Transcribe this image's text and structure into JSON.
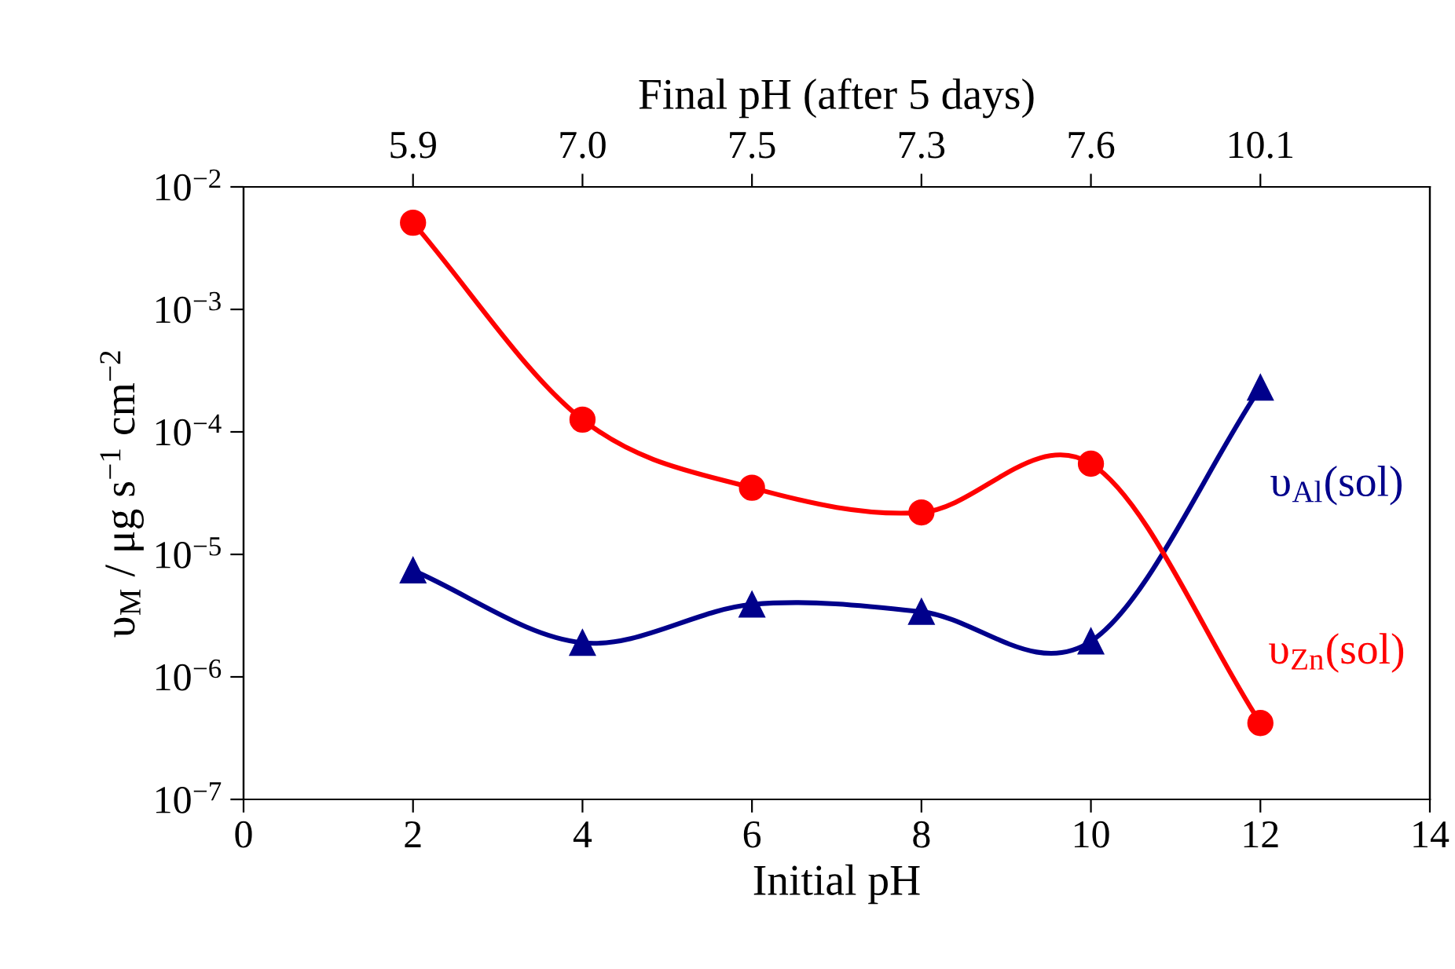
{
  "chart_data": {
    "type": "line",
    "xlabel": "Initial pH",
    "ylabel": "υ$_{M}$ / μg s$^{−1}$ cm$^{−2}$",
    "x2label": "Final pH (after 5 days)",
    "x": [
      2,
      4,
      6,
      8,
      10,
      12
    ],
    "series": [
      {
        "name": "υ$_{Al}$(sol)",
        "color": "#00008b",
        "marker": "triangle",
        "values": [
          7.4e-06,
          1.9e-06,
          3.9e-06,
          3.4e-06,
          1.95e-06,
          0.00023
        ]
      },
      {
        "name": "υ$_{Zn}$(sol)",
        "color": "#ff0000",
        "marker": "circle",
        "values": [
          0.0051,
          0.000126,
          3.5e-05,
          2.2e-05,
          5.5e-05,
          4.2e-07
        ]
      }
    ],
    "log": "y",
    "xlim": [
      0,
      14
    ],
    "xticks": [
      0,
      2,
      4,
      6,
      8,
      10,
      12,
      14
    ],
    "annotations": [
      {
        "text": "5.9",
        "x": 2
      },
      {
        "text": "7.0",
        "x": 4
      },
      {
        "text": "7.5",
        "x": 6
      },
      {
        "text": "7.3",
        "x": 8
      },
      {
        "text": "7.6",
        "x": 10
      },
      {
        "text": "10.1",
        "x": 12
      }
    ],
    "ylim": [
      1e-07,
      0.01
    ],
    "yticks": [
      {
        "value": 1e-07,
        "label": "10$^{−7}$"
      },
      {
        "value": 1e-06,
        "label": "10$^{−6}$"
      },
      {
        "value": 1e-05,
        "label": "10$^{−5}$"
      },
      {
        "value": 0.0001,
        "label": "10$^{−4}$"
      },
      {
        "value": 0.001,
        "label": "10$^{−3}$"
      },
      {
        "value": 0.01,
        "label": "10$^{−2}$"
      }
    ],
    "grid": false,
    "legend": false,
    "line_style": "solid"
  }
}
